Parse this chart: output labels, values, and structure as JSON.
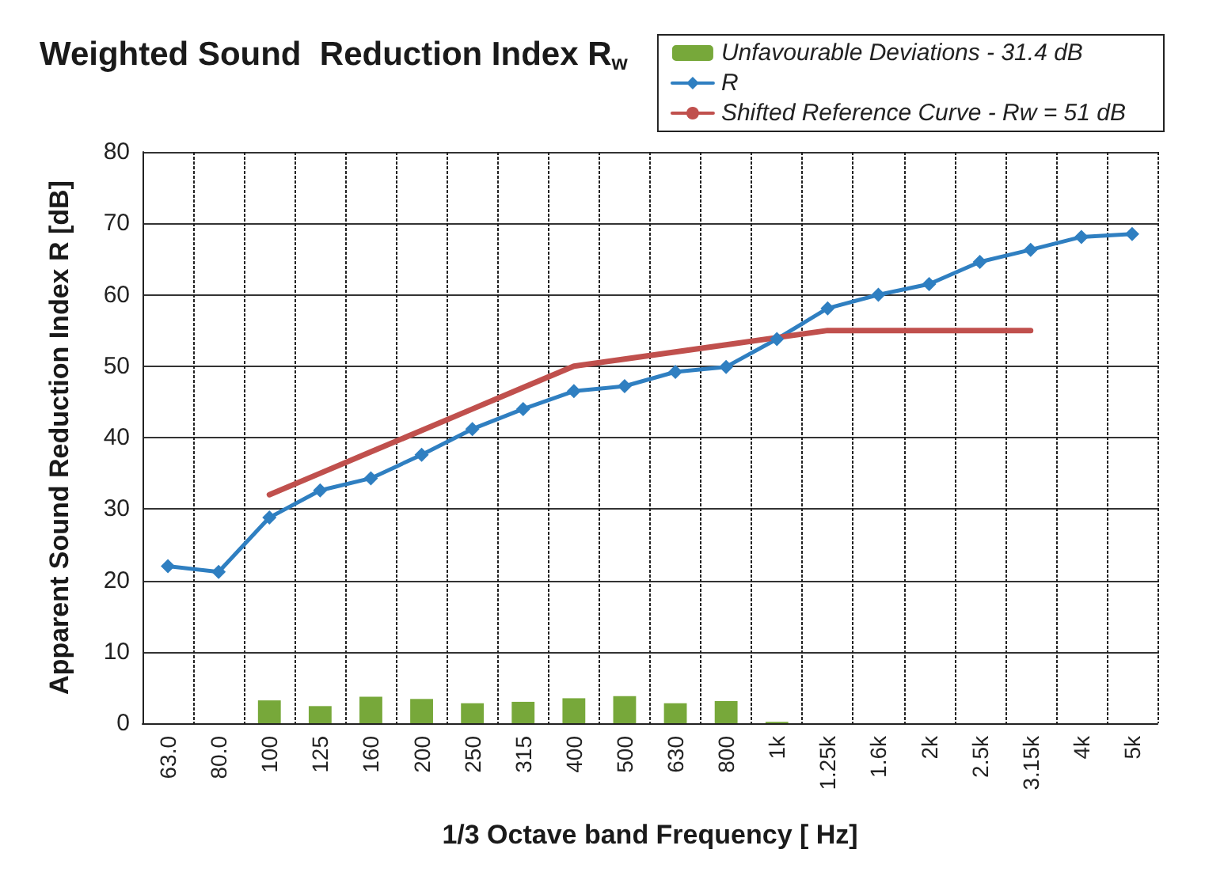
{
  "chart_data": {
    "type": "bar",
    "title": "Weighted Sound  Reduction Index R$_{w}$",
    "xlabel": "1/3 Octave band Frequency [ Hz]",
    "ylabel": "Apparent Sound Reduction Index R [dB]",
    "categories": [
      "63.0",
      "80.0",
      "100",
      "125",
      "160",
      "200",
      "250",
      "315",
      "400",
      "500",
      "630",
      "800",
      "1k",
      "1.25k",
      "1.6k",
      "2k",
      "2.5k",
      "3.15k",
      "4k",
      "5k"
    ],
    "series": [
      {
        "name": "Unfavourable Deviations - 31.4 dB",
        "color": "#77a83a",
        "values": [
          null,
          null,
          3.2,
          2.4,
          3.7,
          3.4,
          2.8,
          3.0,
          3.5,
          3.8,
          2.8,
          3.1,
          0.2,
          null,
          null,
          null,
          null,
          null,
          null,
          null
        ]
      },
      {
        "name": "R",
        "type": "line",
        "color": "#2f7fc1",
        "marker": "diamond",
        "values": [
          22.0,
          21.2,
          28.8,
          32.6,
          34.3,
          37.6,
          41.2,
          44.0,
          46.5,
          47.2,
          49.2,
          49.9,
          53.8,
          58.1,
          60.0,
          61.5,
          64.6,
          66.3,
          68.1,
          68.5
        ]
      },
      {
        "name": "Shifted Reference Curve - Rw = 51 dB",
        "type": "line",
        "color": "#c0504d",
        "marker": "none",
        "values": [
          null,
          null,
          32,
          35,
          38,
          41,
          44,
          47,
          50,
          51,
          52,
          53,
          54,
          55,
          55,
          55,
          55,
          55,
          null,
          null
        ]
      }
    ],
    "ylim": [
      0,
      80
    ],
    "yticks": [
      0,
      10,
      20,
      30,
      40,
      50,
      60,
      70,
      80
    ],
    "grid": true,
    "legend": "top right"
  }
}
